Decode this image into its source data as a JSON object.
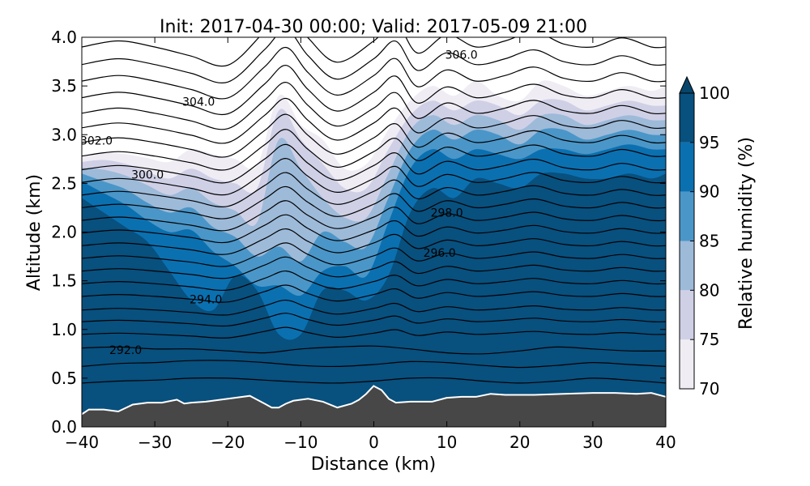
{
  "chart_data": {
    "type": "contour",
    "title": "Init: 2017-04-30 00:00; Valid: 2017-05-09 21:00",
    "xlabel": "Distance (km)",
    "ylabel": "Altitude (km)",
    "xlim": [
      -40,
      40
    ],
    "ylim": [
      0.0,
      4.0
    ],
    "x_ticks": [
      -40,
      -30,
      -20,
      -10,
      0,
      10,
      20,
      30,
      40
    ],
    "x_tick_labels": [
      "−40",
      "−30",
      "−20",
      "−10",
      "0",
      "10",
      "20",
      "30",
      "40"
    ],
    "y_ticks": [
      0.0,
      0.5,
      1.0,
      1.5,
      2.0,
      2.5,
      3.0,
      3.5,
      4.0
    ],
    "y_tick_labels": [
      "0.0",
      "0.5",
      "1.0",
      "1.5",
      "2.0",
      "2.5",
      "3.0",
      "3.5",
      "4.0"
    ],
    "colorbar": {
      "label": "Relative humidity (%)",
      "levels": [
        70,
        75,
        80,
        85,
        90,
        95,
        100
      ],
      "tick_labels": [
        "70",
        "75",
        "80",
        "85",
        "90",
        "95",
        "100"
      ],
      "colors": [
        "#efecf4",
        "#cfd0e6",
        "#9dbad9",
        "#4b96c8",
        "#0b70b0",
        "#08507e"
      ],
      "extend": "max",
      "extend_color": "#08456b"
    },
    "terrain_color": "#474747",
    "terrain": {
      "x": [
        -40,
        -39,
        -37,
        -35,
        -33,
        -31,
        -29,
        -27,
        -26,
        -25,
        -23,
        -21,
        -19,
        -17,
        -16,
        -15,
        -14,
        -13,
        -12,
        -11,
        -9,
        -7,
        -5,
        -3,
        -2,
        -1,
        0,
        1,
        2,
        3,
        5,
        8,
        10,
        12,
        14,
        16,
        18,
        22,
        26,
        30,
        33,
        36,
        38,
        39,
        40
      ],
      "y": [
        0.12,
        0.17,
        0.17,
        0.15,
        0.22,
        0.24,
        0.24,
        0.27,
        0.23,
        0.24,
        0.25,
        0.27,
        0.29,
        0.31,
        0.27,
        0.23,
        0.19,
        0.19,
        0.23,
        0.26,
        0.28,
        0.25,
        0.19,
        0.23,
        0.27,
        0.33,
        0.41,
        0.37,
        0.28,
        0.24,
        0.25,
        0.25,
        0.29,
        0.3,
        0.3,
        0.33,
        0.32,
        0.32,
        0.33,
        0.34,
        0.34,
        0.33,
        0.34,
        0.32,
        0.3
      ]
    },
    "rh_envelopes": [
      {
        "level": 70,
        "x": [
          -40,
          -37,
          -34,
          -31,
          -28,
          -25,
          -22,
          -19,
          -16,
          -13,
          -10,
          -7,
          -4,
          -1,
          2,
          5,
          8,
          11,
          14,
          17,
          20,
          23,
          26,
          29,
          32,
          35,
          38,
          40
        ],
        "y": [
          2.78,
          2.82,
          2.8,
          2.76,
          2.72,
          2.85,
          2.8,
          2.75,
          2.68,
          3.4,
          3.1,
          2.95,
          2.65,
          2.7,
          3.05,
          3.35,
          3.5,
          3.4,
          3.55,
          3.4,
          3.35,
          3.55,
          3.5,
          3.4,
          3.45,
          3.5,
          3.45,
          3.5
        ]
      },
      {
        "level": 75,
        "x": [
          -40,
          -37,
          -34,
          -31,
          -28,
          -25,
          -22,
          -19,
          -16,
          -13,
          -10,
          -7,
          -4,
          -1,
          2,
          5,
          8,
          11,
          14,
          17,
          20,
          23,
          26,
          29,
          32,
          35,
          38,
          40
        ],
        "y": [
          2.72,
          2.74,
          2.7,
          2.62,
          2.55,
          2.65,
          2.55,
          2.5,
          2.45,
          3.25,
          2.95,
          2.7,
          2.45,
          2.45,
          2.85,
          3.2,
          3.35,
          3.25,
          3.35,
          3.3,
          3.2,
          3.35,
          3.35,
          3.25,
          3.3,
          3.35,
          3.3,
          3.3
        ]
      },
      {
        "level": 80,
        "x": [
          -40,
          -37,
          -34,
          -31,
          -28,
          -25,
          -22,
          -19,
          -16,
          -13,
          -10,
          -7,
          -4,
          -1,
          2,
          5,
          8,
          11,
          14,
          17,
          20,
          23,
          26,
          29,
          32,
          35,
          38,
          40
        ],
        "y": [
          2.66,
          2.64,
          2.58,
          2.48,
          2.38,
          2.45,
          2.3,
          2.22,
          2.1,
          2.95,
          2.65,
          2.35,
          2.15,
          2.15,
          2.6,
          3.05,
          3.2,
          3.1,
          3.2,
          3.15,
          3.05,
          3.2,
          3.2,
          3.1,
          3.15,
          3.2,
          3.15,
          3.15
        ]
      },
      {
        "level": 85,
        "x": [
          -40,
          -37,
          -34,
          -31,
          -28,
          -25,
          -22,
          -19,
          -16,
          -13,
          -10,
          -7,
          -4,
          -1,
          2,
          5,
          8,
          11,
          14,
          17,
          20,
          23,
          26,
          29,
          32,
          35,
          38,
          40
        ],
        "y": [
          2.6,
          2.52,
          2.44,
          2.3,
          2.2,
          2.25,
          2.05,
          1.95,
          1.75,
          1.85,
          1.7,
          2.0,
          1.9,
          1.85,
          2.35,
          2.85,
          3.05,
          2.95,
          3.05,
          3.0,
          2.9,
          3.05,
          3.05,
          2.95,
          3.0,
          3.05,
          3.0,
          3.0
        ]
      },
      {
        "level": 90,
        "x": [
          -40,
          -37,
          -34,
          -31,
          -28,
          -25,
          -22,
          -19,
          -16,
          -13,
          -10,
          -7,
          -4,
          -1,
          2,
          5,
          8,
          11,
          14,
          17,
          20,
          23,
          26,
          29,
          32,
          35,
          38,
          40
        ],
        "y": [
          2.52,
          2.4,
          2.28,
          2.12,
          2.0,
          2.02,
          1.8,
          1.65,
          1.45,
          1.45,
          1.35,
          1.6,
          1.65,
          1.55,
          2.1,
          2.65,
          2.85,
          2.75,
          2.85,
          2.8,
          2.75,
          2.85,
          2.85,
          2.8,
          2.85,
          2.9,
          2.85,
          2.85
        ]
      },
      {
        "level": 95,
        "x": [
          -40,
          -37,
          -34,
          -31,
          -28,
          -25,
          -22,
          -19,
          -16,
          -13,
          -10,
          -7,
          -4,
          -1,
          2,
          5,
          8,
          11,
          14,
          17,
          20,
          23,
          26,
          29,
          32,
          35,
          38,
          40
        ],
        "y": [
          2.35,
          2.2,
          2.05,
          1.9,
          1.6,
          1.3,
          1.2,
          1.55,
          1.4,
          0.95,
          0.95,
          1.4,
          1.4,
          1.3,
          1.55,
          2.2,
          2.45,
          2.35,
          2.55,
          2.5,
          2.45,
          2.6,
          2.6,
          2.55,
          2.55,
          2.6,
          2.55,
          2.6
        ]
      }
    ],
    "theta_contours": [
      {
        "value": 290.0,
        "x": [
          -40,
          -35,
          -30,
          -25,
          -20,
          -15,
          -10,
          -5,
          0,
          5,
          10,
          15,
          20,
          25,
          30,
          35,
          40
        ],
        "y": [
          0.45,
          0.47,
          0.48,
          0.5,
          0.5,
          0.48,
          0.46,
          0.45,
          0.47,
          0.5,
          0.5,
          0.47,
          0.45,
          0.47,
          0.5,
          0.48,
          0.45
        ]
      },
      {
        "value": 291.0,
        "x": [
          -40,
          -35,
          -30,
          -25,
          -20,
          -15,
          -10,
          -5,
          0,
          5,
          10,
          15,
          20,
          25,
          30,
          35,
          40
        ],
        "y": [
          0.62,
          0.65,
          0.66,
          0.68,
          0.68,
          0.66,
          0.63,
          0.62,
          0.64,
          0.67,
          0.66,
          0.63,
          0.61,
          0.63,
          0.66,
          0.64,
          0.62
        ]
      },
      {
        "value": 292.0,
        "x": [
          -40,
          -35,
          -30,
          -25,
          -20,
          -15,
          -10,
          -5,
          0,
          5,
          10,
          15,
          20,
          25,
          30,
          35,
          40
        ],
        "y": [
          0.81,
          0.82,
          0.8,
          0.8,
          0.78,
          0.76,
          0.8,
          0.82,
          0.83,
          0.8,
          0.76,
          0.75,
          0.78,
          0.82,
          0.8,
          0.78,
          0.78
        ],
        "label": "292.0",
        "label_x": -34
      }
    ],
    "theta_labels": [
      {
        "value": "292.0",
        "x": -34,
        "y": 0.79
      },
      {
        "value": "294.0",
        "x": -23,
        "y": 1.31
      },
      {
        "value": "296.0",
        "x": 9,
        "y": 1.79
      },
      {
        "value": "298.0",
        "x": 10,
        "y": 2.2
      },
      {
        "value": "300.0",
        "x": -31,
        "y": 2.59
      },
      {
        "value": "302.0",
        "x": -38,
        "y": 2.94
      },
      {
        "value": "304.0",
        "x": -24,
        "y": 3.34
      },
      {
        "value": "306.0",
        "x": 12,
        "y": 3.82
      }
    ]
  }
}
